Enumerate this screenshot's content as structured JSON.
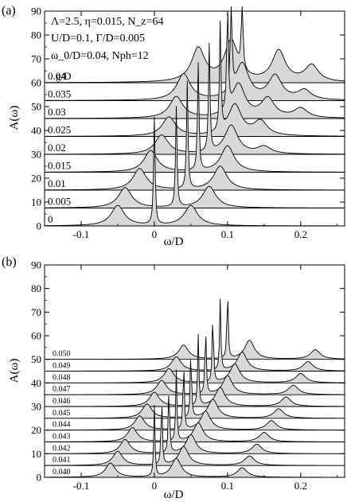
{
  "chart_data": [
    {
      "panel_label": "(a)",
      "type": "area",
      "xlabel": "ω/D",
      "ylabel": "A(ω)",
      "xlim": [
        -0.15,
        0.26
      ],
      "ylim": [
        0,
        90
      ],
      "x_ticks": [
        -0.1,
        0,
        0.1,
        0.2
      ],
      "x_tick_labels": [
        "-0.1",
        "0",
        "0.1",
        "0.2"
      ],
      "y_ticks": [
        0,
        10,
        20,
        30,
        40,
        50,
        60,
        70,
        80,
        90
      ],
      "annotations": [
        "Λ=2.5, η=0.015, N_z=64",
        "U/D=0.1, Γ/D=0.005",
        "ω_0/D=0.04, Nph=12"
      ],
      "legend_title": "g/D",
      "offset_per_curve": 7.5,
      "series": [
        {
          "name": "0",
          "values": [
            {
              "x": -0.05,
              "y": 8.5
            },
            {
              "x": 0.05,
              "y": 8.5
            }
          ],
          "delta": [
            {
              "x": 0.0,
              "y": 45
            }
          ]
        },
        {
          "name": "0.005",
          "values": [
            {
              "x": -0.04,
              "y": 8.5
            },
            {
              "x": 0.075,
              "y": 9
            }
          ],
          "delta": [
            {
              "x": 0.03,
              "y": 42
            }
          ]
        },
        {
          "name": "0.01",
          "values": [
            {
              "x": -0.02,
              "y": 9
            },
            {
              "x": 0.09,
              "y": 10
            }
          ],
          "delta": [
            {
              "x": 0.045,
              "y": 45
            }
          ]
        },
        {
          "name": "0.015",
          "values": [
            {
              "x": -0.005,
              "y": 9
            },
            {
              "x": 0.1,
              "y": 11
            }
          ],
          "delta": [
            {
              "x": 0.06,
              "y": 45
            }
          ]
        },
        {
          "name": "0.02",
          "values": [
            {
              "x": 0.01,
              "y": 8
            },
            {
              "x": 0.105,
              "y": 12
            },
            {
              "x": 0.15,
              "y": 3
            }
          ],
          "delta": [
            {
              "x": 0.075,
              "y": 45
            }
          ]
        },
        {
          "name": "0.025",
          "values": [
            {
              "x": 0.02,
              "y": 8
            },
            {
              "x": 0.11,
              "y": 13
            },
            {
              "x": 0.145,
              "y": 6
            }
          ],
          "delta": [
            {
              "x": 0.09,
              "y": 45
            }
          ]
        },
        {
          "name": "0.03",
          "values": [
            {
              "x": 0.03,
              "y": 9
            },
            {
              "x": 0.115,
              "y": 14
            },
            {
              "x": 0.155,
              "y": 8
            },
            {
              "x": 0.2,
              "y": 4
            }
          ],
          "delta": [
            {
              "x": 0.1,
              "y": 45
            }
          ]
        },
        {
          "name": "0.035",
          "values": [
            {
              "x": 0.04,
              "y": 11
            },
            {
              "x": 0.12,
              "y": 15
            },
            {
              "x": 0.165,
              "y": 10
            },
            {
              "x": 0.205,
              "y": 4
            }
          ],
          "delta": [
            {
              "x": 0.105,
              "y": 45
            }
          ]
        },
        {
          "name": "0.04",
          "values": [
            {
              "x": 0.06,
              "y": 14
            },
            {
              "x": 0.105,
              "y": 17
            },
            {
              "x": 0.17,
              "y": 13
            },
            {
              "x": 0.215,
              "y": 7
            }
          ],
          "delta": [
            {
              "x": 0.12,
              "y": 35
            }
          ]
        }
      ]
    },
    {
      "panel_label": "(b)",
      "type": "area",
      "xlabel": "ω/D",
      "ylabel": "A(ω)",
      "xlim": [
        -0.15,
        0.26
      ],
      "ylim": [
        0,
        90
      ],
      "x_ticks": [
        -0.1,
        0,
        0.1,
        0.2
      ],
      "x_tick_labels": [
        "-0.1",
        "0",
        "0.1",
        "0.2"
      ],
      "y_ticks": [
        0,
        10,
        20,
        30,
        40,
        50,
        60,
        70,
        80,
        90
      ],
      "offset_per_curve": 5,
      "series": [
        {
          "name": "0.040",
          "values": [
            {
              "x": -0.06,
              "y": 6
            },
            {
              "x": 0.03,
              "y": 8
            },
            {
              "x": 0.12,
              "y": 4
            }
          ],
          "delta": [
            {
              "x": 0.0,
              "y": 30
            }
          ]
        },
        {
          "name": "0.041",
          "values": [
            {
              "x": -0.05,
              "y": 6
            },
            {
              "x": 0.04,
              "y": 8
            },
            {
              "x": 0.13,
              "y": 4
            }
          ],
          "delta": [
            {
              "x": 0.01,
              "y": 30
            }
          ]
        },
        {
          "name": "0.042",
          "values": [
            {
              "x": -0.04,
              "y": 6
            },
            {
              "x": 0.05,
              "y": 8
            },
            {
              "x": 0.14,
              "y": 4
            }
          ],
          "delta": [
            {
              "x": 0.02,
              "y": 30
            }
          ]
        },
        {
          "name": "0.043",
          "values": [
            {
              "x": -0.03,
              "y": 6
            },
            {
              "x": 0.06,
              "y": 8
            },
            {
              "x": 0.15,
              "y": 4
            }
          ],
          "delta": [
            {
              "x": 0.03,
              "y": 30
            }
          ]
        },
        {
          "name": "0.044",
          "values": [
            {
              "x": -0.02,
              "y": 6
            },
            {
              "x": 0.07,
              "y": 8
            },
            {
              "x": 0.16,
              "y": 4
            }
          ],
          "delta": [
            {
              "x": 0.04,
              "y": 30
            }
          ]
        },
        {
          "name": "0.045",
          "values": [
            {
              "x": -0.01,
              "y": 6
            },
            {
              "x": 0.08,
              "y": 8
            },
            {
              "x": 0.17,
              "y": 4
            }
          ],
          "delta": [
            {
              "x": 0.05,
              "y": 30
            }
          ]
        },
        {
          "name": "0.046",
          "values": [
            {
              "x": 0.0,
              "y": 6
            },
            {
              "x": 0.09,
              "y": 8
            },
            {
              "x": 0.18,
              "y": 4
            }
          ],
          "delta": [
            {
              "x": 0.06,
              "y": 30
            }
          ]
        },
        {
          "name": "0.047",
          "values": [
            {
              "x": 0.01,
              "y": 6
            },
            {
              "x": 0.1,
              "y": 8
            },
            {
              "x": 0.19,
              "y": 4
            }
          ],
          "delta": [
            {
              "x": 0.07,
              "y": 30
            }
          ]
        },
        {
          "name": "0.048",
          "values": [
            {
              "x": 0.02,
              "y": 6
            },
            {
              "x": 0.11,
              "y": 8
            },
            {
              "x": 0.2,
              "y": 4
            }
          ],
          "delta": [
            {
              "x": 0.08,
              "y": 30
            }
          ]
        },
        {
          "name": "0.049",
          "values": [
            {
              "x": 0.03,
              "y": 6
            },
            {
              "x": 0.12,
              "y": 8
            },
            {
              "x": 0.21,
              "y": 4
            }
          ],
          "delta": [
            {
              "x": 0.09,
              "y": 30
            }
          ]
        },
        {
          "name": "0.050",
          "values": [
            {
              "x": 0.04,
              "y": 6
            },
            {
              "x": 0.13,
              "y": 8
            },
            {
              "x": 0.22,
              "y": 4
            }
          ],
          "delta": [
            {
              "x": 0.1,
              "y": 30
            }
          ]
        }
      ]
    }
  ]
}
